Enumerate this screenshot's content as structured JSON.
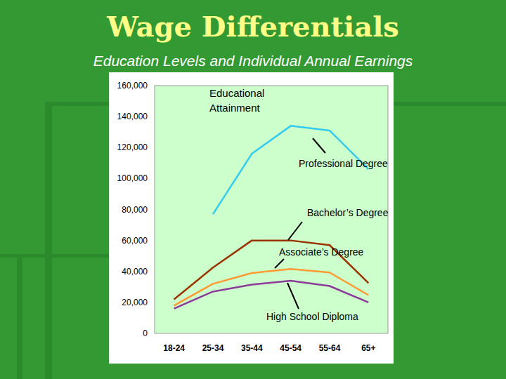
{
  "chart_data": {
    "type": "line",
    "title": "Wage Differentials",
    "subtitle": "Education Levels and Individual Annual Earnings",
    "annotation": "Educational Attainment",
    "categories": [
      "18-24",
      "25-34",
      "35-44",
      "45-54",
      "55-64",
      "65+"
    ],
    "series": [
      {
        "name": "Professional Degree",
        "color": "#33ccee",
        "values": [
          null,
          77000,
          116000,
          134000,
          131000,
          106000
        ]
      },
      {
        "name": "Bachelor’s Degree",
        "color": "#993300",
        "values": [
          22000,
          42500,
          60000,
          60000,
          57000,
          32500
        ]
      },
      {
        "name": "Associate’s Degree",
        "color": "#ff9933",
        "values": [
          18000,
          32000,
          39000,
          41600,
          39300,
          24700
        ]
      },
      {
        "name": "High School Diploma",
        "color": "#8e3a9a",
        "values": [
          16000,
          27000,
          31500,
          34000,
          30600,
          20000
        ]
      }
    ],
    "ylim": [
      0,
      160000
    ],
    "yticks": [
      0,
      {
        "value": 20000,
        "label": "20,000"
      },
      {
        "value": 40000,
        "label": "40,000"
      },
      {
        "value": 60000,
        "label": "60,000"
      },
      {
        "value": 80000,
        "label": "80,000"
      },
      {
        "value": 100000,
        "label": "100,000"
      },
      {
        "value": 120000,
        "label": "120,000"
      },
      {
        "value": 140000,
        "label": "140,000"
      },
      {
        "value": 160000,
        "label": "160,000"
      }
    ],
    "grid": false
  }
}
